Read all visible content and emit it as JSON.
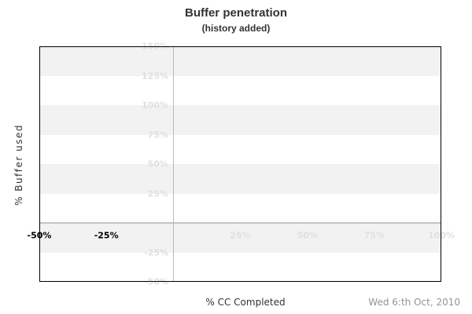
{
  "chart_data": {
    "type": "line",
    "title": "Buffer penetration",
    "subtitle": "(history added)",
    "xlabel": "% CC Completed",
    "ylabel": "% Buffer used",
    "xlim": [
      -50,
      100
    ],
    "ylim": [
      -50,
      150
    ],
    "band_step": 25,
    "grid": "alternating-horizontal-bands",
    "legend_position": "none",
    "series": [],
    "x_ticks": [
      {
        "value": -50,
        "label": "-50%",
        "emphasis": true
      },
      {
        "value": -25,
        "label": "-25%",
        "emphasis": true
      },
      {
        "value": 25,
        "label": "25%",
        "emphasis": false
      },
      {
        "value": 50,
        "label": "50%",
        "emphasis": false
      },
      {
        "value": 75,
        "label": "75%",
        "emphasis": false
      },
      {
        "value": 100,
        "label": "100%",
        "emphasis": false
      }
    ],
    "y_ticks": [
      {
        "value": 150,
        "label": "150%"
      },
      {
        "value": 125,
        "label": "125%"
      },
      {
        "value": 100,
        "label": "100%"
      },
      {
        "value": 75,
        "label": "75%"
      },
      {
        "value": 50,
        "label": "50%"
      },
      {
        "value": 25,
        "label": "25%"
      },
      {
        "value": -25,
        "label": "-25%"
      },
      {
        "value": -50,
        "label": "-50%"
      }
    ]
  },
  "footer": {
    "date": "Wed 6:th Oct, 2010"
  },
  "colors": {
    "background": "#ffffff",
    "band_gray": "#f2f2f2",
    "band_white": "#ffffff",
    "faint_label": "#e0e0e0",
    "emphasis_label": "#000000",
    "zero_line_h": "#c3c3c3",
    "zero_line_v": "#b9b9b9",
    "plot_border": "#000000",
    "title_text": "#333333",
    "axis_title_text": "#333333",
    "date_text": "#949494"
  }
}
